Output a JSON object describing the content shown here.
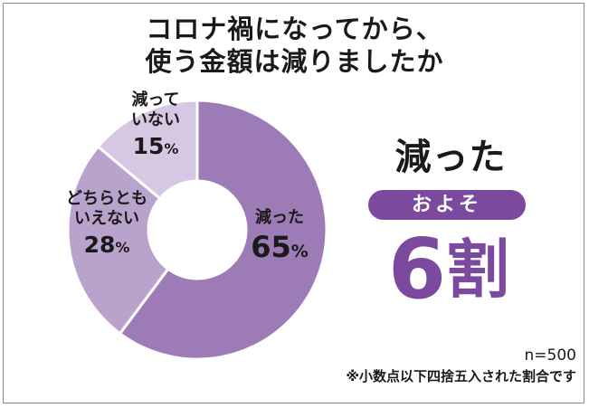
{
  "title": {
    "line1": "コロナ禍になってから、",
    "line2": "使う金額は減りましたか"
  },
  "chart_data": {
    "type": "pie",
    "donut": true,
    "slices": [
      {
        "label": "減った",
        "label_lines": [
          "減った"
        ],
        "value": 65,
        "color": "#9d7bb6"
      },
      {
        "label": "どちらともいえない",
        "label_lines": [
          "どちらとも",
          "いえない"
        ],
        "value": 28,
        "color": "#b9a2cc"
      },
      {
        "label": "減っていない",
        "label_lines": [
          "減って",
          "いない"
        ],
        "value": 15,
        "color": "#d6c8e2"
      }
    ],
    "value_suffix": "%",
    "start": "top",
    "direction": "clockwise"
  },
  "callout": {
    "headline": "減った",
    "pill": "およそ",
    "figure": "6",
    "figure_unit": "割"
  },
  "footnote": {
    "n_label": "n=500",
    "note": "※小数点以下四捨五入された割合です"
  },
  "colors": {
    "accent": "#7b4a9e",
    "text": "#1a1a1a",
    "frame": "#8a8a8a"
  }
}
